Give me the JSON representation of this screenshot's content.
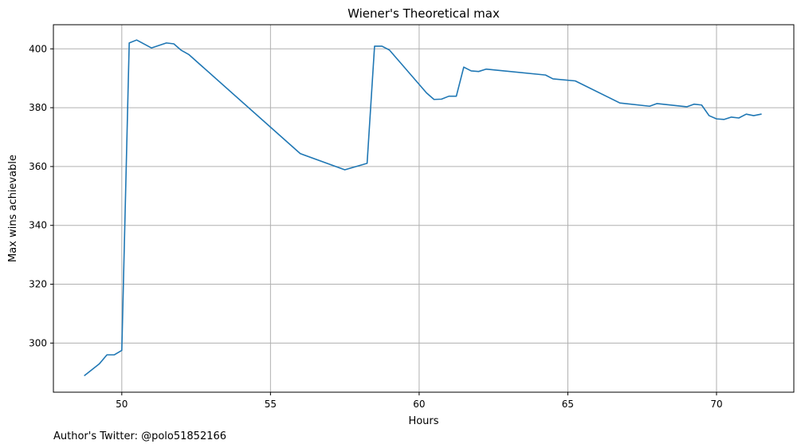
{
  "chart_data": {
    "type": "line",
    "title": "Wiener's Theoretical max",
    "xlabel": "Hours",
    "ylabel": "Max wins achievable",
    "footer": "Author's Twitter: @polo51852166",
    "xlim": [
      47.7,
      72.6
    ],
    "ylim": [
      283.3,
      408.2
    ],
    "xticks": [
      50,
      55,
      60,
      65,
      70
    ],
    "yticks": [
      300,
      320,
      340,
      360,
      380,
      400
    ],
    "grid": true,
    "line_color": "#1f77b4",
    "series": [
      {
        "x": [
          48.75,
          49.25,
          49.5,
          49.75,
          50.0,
          50.25,
          50.5,
          51.0,
          51.5,
          51.75,
          52.0,
          52.25,
          56.0,
          57.5,
          58.25,
          58.5,
          58.75,
          59.0,
          60.25,
          60.5,
          60.75,
          61.0,
          61.25,
          61.5,
          61.75,
          62.0,
          62.25,
          64.25,
          64.5,
          65.25,
          66.75,
          67.75,
          68.0,
          69.0,
          69.25,
          69.5,
          69.75,
          70.0,
          70.25,
          70.5,
          70.75,
          71.0,
          71.25,
          71.5
        ],
        "y": [
          289,
          293,
          296,
          296,
          297.5,
          402,
          403,
          400.3,
          402,
          401.7,
          399.5,
          398.1,
          364.4,
          358.9,
          361.1,
          400.9,
          400.9,
          399.6,
          385,
          382.8,
          382.9,
          383.9,
          383.9,
          393.8,
          392.5,
          392.3,
          393.1,
          391.1,
          389.8,
          389.1,
          381.6,
          380.5,
          381.4,
          380.3,
          381.2,
          380.9,
          377.3,
          376.2,
          376.0,
          376.8,
          376.5,
          377.8,
          377.3,
          377.8
        ]
      }
    ]
  }
}
